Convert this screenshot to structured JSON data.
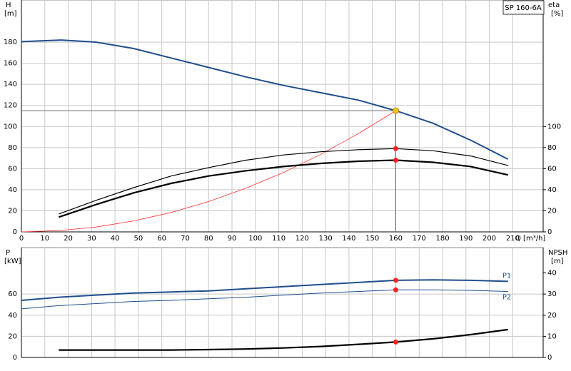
{
  "chart_data": [
    {
      "type": "line",
      "title": "SP 160-6A",
      "ylabel": {
        "name": "H",
        "unit": "[m]"
      },
      "y2label": {
        "name": "eta",
        "unit": "[%]"
      },
      "xlabel": "Q [m³/h]",
      "xlim": [
        0,
        223
      ],
      "ylim": [
        0,
        220
      ],
      "y2lim": [
        0,
        220
      ],
      "xticks": [
        0,
        10,
        20,
        30,
        40,
        50,
        60,
        70,
        80,
        90,
        100,
        110,
        120,
        130,
        140,
        150,
        160,
        170,
        180,
        190,
        200,
        210
      ],
      "yticks": [
        0,
        20,
        40,
        60,
        80,
        100,
        120,
        140,
        160,
        180
      ],
      "y2ticks": [
        0,
        20,
        40,
        60,
        80,
        100
      ],
      "grid": true,
      "series": [
        {
          "color": "#1f4e8c",
          "width": 2,
          "x": [
            0,
            17,
            32,
            48,
            64,
            80,
            96,
            112,
            128,
            144,
            160,
            176,
            192,
            208
          ],
          "values": [
            180.5,
            182,
            180,
            174,
            165,
            156,
            147,
            139,
            132,
            125,
            115,
            103,
            87,
            69
          ]
        },
        {
          "color": "#ff3030",
          "width": 0.8,
          "x": [
            0,
            16,
            32,
            48,
            64,
            80,
            96,
            112,
            128,
            144,
            160
          ],
          "values": [
            0,
            1.2,
            4.6,
            10.4,
            18.4,
            28.8,
            41.4,
            56.4,
            73.6,
            93.2,
            115
          ]
        },
        {
          "color": "#000000",
          "width": 1.2,
          "axis": "y2",
          "x": [
            16,
            32,
            48,
            64,
            80,
            96,
            112,
            128,
            144,
            160,
            176,
            192,
            208
          ],
          "values": [
            17,
            30,
            42,
            53,
            61,
            68,
            73,
            76,
            78,
            79,
            77,
            72,
            63
          ]
        },
        {
          "color": "#000000",
          "width": 2.2,
          "axis": "y2",
          "x": [
            16,
            32,
            48,
            64,
            80,
            96,
            112,
            128,
            144,
            160,
            176,
            192,
            208
          ],
          "values": [
            14,
            26,
            37,
            46,
            53,
            58,
            62,
            65,
            67,
            68,
            66,
            62,
            54
          ]
        },
        {
          "color": "#ff2020",
          "markers": true,
          "axis": "y2",
          "x": [
            160,
            160
          ],
          "values": [
            79,
            68
          ]
        }
      ],
      "duty_point": {
        "x": 160,
        "y": 115,
        "color": "#f7c51e"
      }
    },
    {
      "type": "line",
      "ylabel": {
        "name": "P",
        "unit": "[kW]"
      },
      "y2label": {
        "name": "NPSH",
        "unit": "[m]"
      },
      "xlim": [
        0,
        223
      ],
      "ylim": [
        0,
        104
      ],
      "y2lim": [
        0,
        52
      ],
      "yticks": [
        0,
        20,
        40,
        60
      ],
      "y2ticks": [
        0,
        10,
        20,
        30,
        40
      ],
      "grid": true,
      "series": [
        {
          "name": "P1",
          "color": "#1f4e8c",
          "width": 2,
          "x": [
            0,
            16,
            32,
            48,
            64,
            80,
            96,
            112,
            128,
            144,
            160,
            176,
            192,
            208
          ],
          "values": [
            54,
            57,
            59,
            61,
            62,
            63,
            65,
            67,
            69,
            71,
            73,
            73.5,
            73,
            72
          ]
        },
        {
          "name": "P2",
          "color": "#1f4e8c",
          "width": 1,
          "x": [
            0,
            16,
            32,
            48,
            64,
            80,
            96,
            112,
            128,
            144,
            160,
            176,
            192,
            208
          ],
          "values": [
            46,
            49,
            51,
            53,
            54,
            55.5,
            57,
            59,
            61,
            62.5,
            64,
            64,
            63.5,
            62.5
          ]
        },
        {
          "color": "#000000",
          "width": 2.2,
          "axis": "y2",
          "x": [
            16,
            32,
            48,
            64,
            80,
            96,
            112,
            128,
            144,
            160,
            176,
            192,
            208
          ],
          "values": [
            3.5,
            3.5,
            3.5,
            3.5,
            3.7,
            4,
            4.5,
            5.2,
            6.2,
            7.3,
            8.8,
            10.8,
            13.2
          ]
        },
        {
          "color": "#ff2020",
          "markers": true,
          "x": [
            160,
            160
          ],
          "values": [
            73,
            64
          ]
        },
        {
          "color": "#ff2020",
          "markers": true,
          "axis": "y2",
          "x": [
            160
          ],
          "values": [
            7.3
          ]
        }
      ]
    }
  ]
}
